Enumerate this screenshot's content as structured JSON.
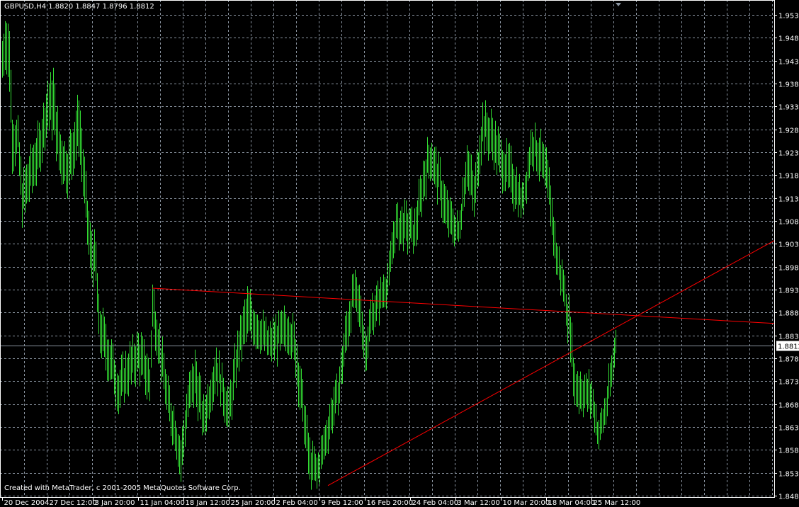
{
  "chart_data": {
    "type": "ohlc-bar",
    "symbol_header": "GBPUSD,H4  1.8820 1.8847 1.8796 1.8812",
    "symbol": "GBPUSD",
    "timeframe": "H4",
    "last_bar": {
      "open": 1.882,
      "high": 1.8847,
      "low": 1.8796,
      "close": 1.8812
    },
    "bid_line": 1.8812,
    "bid_label": "1.8812",
    "credit": "Created with MetaTrader, c 2001-2005 MetaQuotes Software Corp.",
    "ylim": [
      1.847,
      1.957
    ],
    "y_ticks": [
      "1.9535",
      "1.9485",
      "1.9435",
      "1.9385",
      "1.9335",
      "1.9285",
      "1.9235",
      "1.9185",
      "1.9135",
      "1.9085",
      "1.9035",
      "1.8985",
      "1.8935",
      "1.8885",
      "1.8835",
      "1.8785",
      "1.8735",
      "1.8685",
      "1.8635",
      "1.8585",
      "1.8535",
      "1.8485"
    ],
    "x_ticks": [
      {
        "bar": 0,
        "label": "20 Dec 2004"
      },
      {
        "bar": 32,
        "label": "27 Dec 12:00"
      },
      {
        "bar": 64,
        "label": "3 Jan 20:00"
      },
      {
        "bar": 96,
        "label": "11 Jan 04:00"
      },
      {
        "bar": 128,
        "label": "18 Jan 12:00"
      },
      {
        "bar": 160,
        "label": "25 Jan 20:00"
      },
      {
        "bar": 192,
        "label": "2 Feb 04:00"
      },
      {
        "bar": 224,
        "label": "9 Feb 12:00"
      },
      {
        "bar": 256,
        "label": "16 Feb 20:00"
      },
      {
        "bar": 288,
        "label": "24 Feb 04:00"
      },
      {
        "bar": 320,
        "label": "3 Mar 12:00"
      },
      {
        "bar": 352,
        "label": "10 Mar 20:00"
      },
      {
        "bar": 384,
        "label": "18 Mar 04:00"
      },
      {
        "bar": 416,
        "label": "25 Mar 12:00"
      }
    ],
    "grid": true,
    "colors": {
      "background": "#000000",
      "bars": "#33dd33",
      "grid": "#8a94a0",
      "trendline": "#ff0000",
      "bid_line": "#8a94a0",
      "axis": "#ffffff"
    },
    "high_low_keypoints": [
      [
        0,
        1.947,
        1.94
      ],
      [
        2,
        1.9525,
        1.944
      ],
      [
        5,
        1.95,
        1.938
      ],
      [
        7,
        1.931,
        1.922
      ],
      [
        11,
        1.929,
        1.923
      ],
      [
        14,
        1.917,
        1.909
      ],
      [
        20,
        1.923,
        1.915
      ],
      [
        26,
        1.928,
        1.92
      ],
      [
        32,
        1.938,
        1.93
      ],
      [
        36,
        1.94,
        1.928
      ],
      [
        40,
        1.928,
        1.92
      ],
      [
        46,
        1.924,
        1.916
      ],
      [
        54,
        1.935,
        1.925
      ],
      [
        58,
        1.92,
        1.912
      ],
      [
        62,
        1.906,
        1.898
      ],
      [
        66,
        1.903,
        1.895
      ],
      [
        68,
        1.89,
        1.882
      ],
      [
        74,
        1.884,
        1.876
      ],
      [
        78,
        1.88,
        1.873
      ],
      [
        82,
        1.875,
        1.868
      ],
      [
        88,
        1.879,
        1.872
      ],
      [
        96,
        1.883,
        1.876
      ],
      [
        101,
        1.88,
        1.872
      ],
      [
        104,
        1.876,
        1.87
      ],
      [
        106,
        1.894,
        1.886
      ],
      [
        111,
        1.884,
        1.878
      ],
      [
        117,
        1.872,
        1.865
      ],
      [
        122,
        1.866,
        1.86
      ],
      [
        126,
        1.86,
        1.853
      ],
      [
        131,
        1.872,
        1.866
      ],
      [
        136,
        1.879,
        1.87
      ],
      [
        142,
        1.868,
        1.862
      ],
      [
        151,
        1.88,
        1.874
      ],
      [
        160,
        1.87,
        1.863
      ],
      [
        167,
        1.885,
        1.878
      ],
      [
        173,
        1.892,
        1.884
      ],
      [
        181,
        1.888,
        1.882
      ],
      [
        188,
        1.884,
        1.879
      ],
      [
        196,
        1.887,
        1.88
      ],
      [
        203,
        1.888,
        1.882
      ],
      [
        207,
        1.884,
        1.876
      ],
      [
        212,
        1.872,
        1.864
      ],
      [
        217,
        1.859,
        1.852
      ],
      [
        222,
        1.856,
        1.851
      ],
      [
        227,
        1.862,
        1.857
      ],
      [
        232,
        1.869,
        1.863
      ],
      [
        237,
        1.874,
        1.868
      ],
      [
        242,
        1.886,
        1.879
      ],
      [
        248,
        1.896,
        1.89
      ],
      [
        253,
        1.892,
        1.885
      ],
      [
        256,
        1.883,
        1.877
      ],
      [
        261,
        1.891,
        1.885
      ],
      [
        268,
        1.895,
        1.89
      ],
      [
        273,
        1.899,
        1.894
      ],
      [
        277,
        1.91,
        1.904
      ],
      [
        283,
        1.911,
        1.904
      ],
      [
        291,
        1.909,
        1.903
      ],
      [
        298,
        1.922,
        1.915
      ],
      [
        302,
        1.926,
        1.92
      ],
      [
        308,
        1.921,
        1.914
      ],
      [
        314,
        1.913,
        1.906
      ],
      [
        322,
        1.908,
        1.904
      ],
      [
        328,
        1.925,
        1.918
      ],
      [
        333,
        1.917,
        1.91
      ],
      [
        339,
        1.933,
        1.926
      ],
      [
        346,
        1.93,
        1.923
      ],
      [
        352,
        1.925,
        1.918
      ],
      [
        358,
        1.923,
        1.915
      ],
      [
        367,
        1.915,
        1.91
      ],
      [
        374,
        1.929,
        1.923
      ],
      [
        381,
        1.925,
        1.918
      ],
      [
        386,
        1.919,
        1.911
      ],
      [
        391,
        1.904,
        1.898
      ],
      [
        396,
        1.897,
        1.892
      ],
      [
        401,
        1.888,
        1.88
      ],
      [
        404,
        1.876,
        1.869
      ],
      [
        411,
        1.874,
        1.868
      ],
      [
        416,
        1.873,
        1.867
      ],
      [
        421,
        1.864,
        1.86
      ],
      [
        426,
        1.87,
        1.865
      ],
      [
        430,
        1.878,
        1.872
      ],
      [
        433,
        1.8847,
        1.8796
      ]
    ],
    "trendlines": [
      {
        "from": {
          "bar": 106,
          "price": 1.8938
        },
        "to": {
          "bar": 545,
          "price": 1.8861
        }
      },
      {
        "from": {
          "bar": 230,
          "price": 1.8507
        },
        "to": {
          "bar": 545,
          "price": 1.9042
        }
      }
    ]
  }
}
